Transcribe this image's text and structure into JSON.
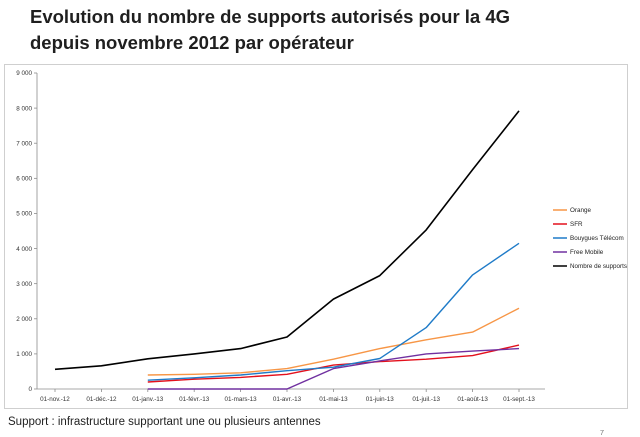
{
  "slide": {
    "title_line1": "Evolution du nombre de supports autorisés pour la 4G",
    "title_line2": "depuis novembre 2012 par opérateur",
    "caption": "Support : infrastructure supportant une ou plusieurs antennes",
    "page_number": "7"
  },
  "chart_data": {
    "type": "line",
    "title": "",
    "xlabel": "",
    "ylabel": "",
    "ylim": [
      0,
      9000
    ],
    "yticks": [
      0,
      1000,
      2000,
      3000,
      4000,
      5000,
      6000,
      7000,
      8000,
      9000
    ],
    "ytick_labels": [
      "0",
      "1 000",
      "2 000",
      "3 000",
      "4 000",
      "5 000",
      "6 000",
      "7 000",
      "8 000",
      "9 000"
    ],
    "categories": [
      "01-nov.-12",
      "01-déc.-12",
      "01-janv.-13",
      "01-févr.-13",
      "01-mars-13",
      "01-avr.-13",
      "01-mai-13",
      "01-juin-13",
      "01-juil.-13",
      "01-août-13",
      "01-sept.-13"
    ],
    "grid": false,
    "legend_position": "right",
    "series": [
      {
        "name": "Orange",
        "color": "#f79646",
        "x": [
          2,
          3,
          4,
          5,
          6,
          7,
          8,
          9,
          10
        ],
        "values": [
          400,
          420,
          460,
          580,
          850,
          1150,
          1400,
          1620,
          2300
        ]
      },
      {
        "name": "SFR",
        "color": "#e3101c",
        "x": [
          2,
          3,
          4,
          5,
          6,
          7,
          8,
          9,
          10
        ],
        "values": [
          200,
          280,
          330,
          420,
          680,
          780,
          850,
          950,
          1250
        ]
      },
      {
        "name": "Bouygues Télécom",
        "color": "#1f7bc8",
        "x": [
          2,
          3,
          4,
          5,
          6,
          7,
          8,
          9,
          10
        ],
        "values": [
          250,
          320,
          400,
          520,
          620,
          870,
          1750,
          3250,
          4150
        ]
      },
      {
        "name": "Free Mobile",
        "color": "#7030a0",
        "x": [
          2,
          3,
          4,
          5,
          6,
          7,
          8,
          9,
          10
        ],
        "values": [
          0,
          0,
          0,
          0,
          580,
          800,
          1000,
          1080,
          1150
        ]
      },
      {
        "name": "Nombre de supports",
        "color": "#000000",
        "x": [
          0,
          1,
          2,
          3,
          4,
          5,
          6,
          7,
          8,
          9,
          10
        ],
        "values": [
          560,
          660,
          860,
          1000,
          1150,
          1480,
          2560,
          3230,
          4530,
          6250,
          7920
        ]
      }
    ]
  }
}
